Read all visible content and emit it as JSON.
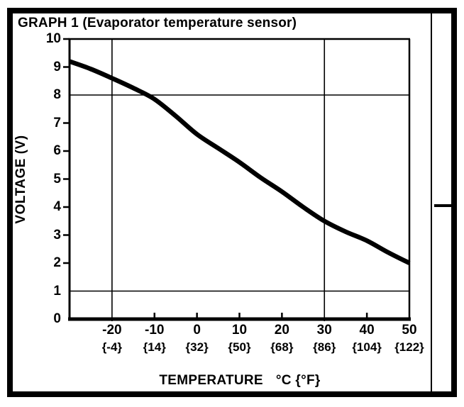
{
  "page": {
    "title": "GRAPH 1 (Evaporator temperature sensor)"
  },
  "chart_data": {
    "type": "line",
    "title": "GRAPH 1 (Evaporator temperature sensor)",
    "xlabel": "TEMPERATURE",
    "xlabel_units": "°C {°F}",
    "ylabel": "VOLTAGE (V)",
    "xlim": [
      -30,
      50
    ],
    "ylim": [
      0,
      10
    ],
    "grid": "partial",
    "legend": "none",
    "x_gridlines": [
      -20,
      30
    ],
    "y_gridlines": [
      1,
      8
    ],
    "x_ticks": [
      {
        "value": -20,
        "celsius": "-20",
        "fahrenheit": "{-4}"
      },
      {
        "value": -10,
        "celsius": "-10",
        "fahrenheit": "{14}"
      },
      {
        "value": 0,
        "celsius": "0",
        "fahrenheit": "{32}"
      },
      {
        "value": 10,
        "celsius": "10",
        "fahrenheit": "{50}"
      },
      {
        "value": 20,
        "celsius": "20",
        "fahrenheit": "{68}"
      },
      {
        "value": 30,
        "celsius": "30",
        "fahrenheit": "{86}"
      },
      {
        "value": 40,
        "celsius": "40",
        "fahrenheit": "{104}"
      },
      {
        "value": 50,
        "celsius": "50",
        "fahrenheit": "{122}"
      }
    ],
    "y_ticks": [
      0,
      1,
      2,
      3,
      4,
      5,
      6,
      7,
      8,
      9,
      10
    ],
    "series": [
      {
        "name": "Evaporator temperature sensor voltage",
        "points": [
          [
            -30,
            9.2
          ],
          [
            -25,
            8.93
          ],
          [
            -20,
            8.6
          ],
          [
            -15,
            8.25
          ],
          [
            -10,
            7.85
          ],
          [
            -5,
            7.25
          ],
          [
            0,
            6.6
          ],
          [
            5,
            6.1
          ],
          [
            10,
            5.6
          ],
          [
            15,
            5.05
          ],
          [
            20,
            4.55
          ],
          [
            25,
            4.0
          ],
          [
            30,
            3.5
          ],
          [
            35,
            3.12
          ],
          [
            40,
            2.8
          ],
          [
            45,
            2.38
          ],
          [
            50,
            2.0
          ]
        ]
      }
    ],
    "colors": {
      "line": "#000000",
      "grid": "#1a1a1a",
      "text": "#000000"
    }
  }
}
